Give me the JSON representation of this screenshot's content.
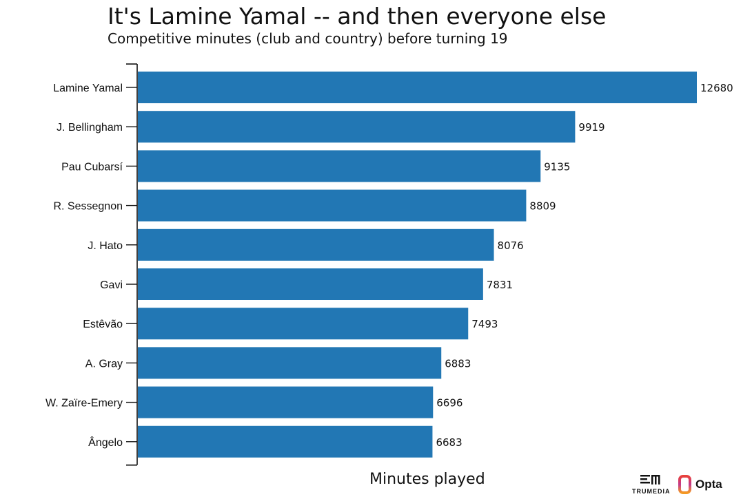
{
  "chart_data": {
    "type": "bar",
    "orientation": "horizontal",
    "title": "It's Lamine Yamal -- and then everyone else",
    "subtitle": "Competitive minutes (club and country) before turning 19",
    "xlabel": "Minutes played",
    "ylabel": "",
    "categories": [
      "Lamine Yamal",
      "J. Bellingham",
      "Pau Cubarsí",
      "R. Sessegnon",
      "J. Hato",
      "Gavi",
      "Estêvão",
      "A. Gray",
      "W. Zaïre-Emery",
      "Ângelo"
    ],
    "values": [
      12680,
      9919,
      9135,
      8809,
      8076,
      7831,
      7493,
      6883,
      6696,
      6683
    ],
    "value_labels": [
      "12680",
      "9919",
      "9135",
      "8809",
      "8076",
      "7831",
      "7493",
      "6883",
      "6696",
      "6683"
    ],
    "xlim": [
      0,
      12680
    ],
    "grid": false,
    "bar_color": "#2277b4"
  },
  "logos": {
    "trumedia": "TRUMEDIA",
    "opta": "Opta"
  }
}
